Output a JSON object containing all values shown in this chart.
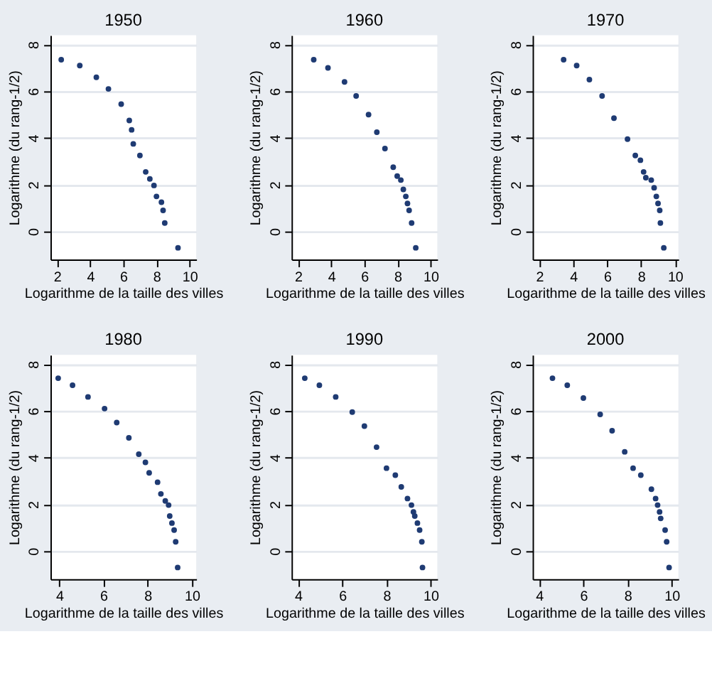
{
  "chart_data": [
    {
      "type": "scatter",
      "title": "1950",
      "xlabel": "Logarithme de la taille des villes",
      "ylabel": "Logarithme (du rang-1/2)",
      "color": "#1f3b73",
      "marker": "circle",
      "grid": "y",
      "xlim": [
        1.6,
        10.4
      ],
      "ylim": [
        -1.2,
        8.4
      ],
      "xticks": [
        2,
        4,
        6,
        8,
        10
      ],
      "yticks": [
        0,
        2,
        4,
        6,
        8
      ],
      "x": [
        2.25,
        3.37,
        4.37,
        5.1,
        5.87,
        6.36,
        6.5,
        6.6,
        7.0,
        7.35,
        7.6,
        7.85,
        8.0,
        8.3,
        8.4,
        8.5,
        9.3
      ],
      "values": [
        7.35,
        7.1,
        6.6,
        6.1,
        5.45,
        4.75,
        4.35,
        3.75,
        3.25,
        2.55,
        2.25,
        1.97,
        1.5,
        1.25,
        0.9,
        0.36,
        -0.7
      ]
    },
    {
      "type": "scatter",
      "title": "1960",
      "xlabel": "Logarithme de la taille des villes",
      "ylabel": "Logarithme (du rang-1/2)",
      "color": "#1f3b73",
      "marker": "circle",
      "grid": "y",
      "xlim": [
        1.6,
        10.4
      ],
      "ylim": [
        -1.2,
        8.4
      ],
      "xticks": [
        2,
        4,
        6,
        8,
        10
      ],
      "yticks": [
        0,
        2,
        4,
        6,
        8
      ],
      "x": [
        2.94,
        3.8,
        4.8,
        5.5,
        6.25,
        6.75,
        7.24,
        7.74,
        7.98,
        8.2,
        8.35,
        8.5,
        8.6,
        8.7,
        8.85,
        9.1
      ],
      "values": [
        7.35,
        7.0,
        6.4,
        5.8,
        5.0,
        4.25,
        3.55,
        2.75,
        2.37,
        2.2,
        1.8,
        1.5,
        1.2,
        0.9,
        0.36,
        -0.7
      ]
    },
    {
      "type": "scatter",
      "title": "1970",
      "xlabel": "Logarithme de la taille des villes",
      "ylabel": "Logarithme (du rang-1/2)",
      "color": "#1f3b73",
      "marker": "circle",
      "grid": "y",
      "xlim": [
        1.6,
        10.2
      ],
      "ylim": [
        -1.2,
        8.4
      ],
      "xticks": [
        2,
        4,
        6,
        8,
        10
      ],
      "yticks": [
        0,
        2,
        4,
        6,
        8
      ],
      "x": [
        3.43,
        4.2,
        4.95,
        5.7,
        6.4,
        7.2,
        7.66,
        7.96,
        8.15,
        8.28,
        8.6,
        8.77,
        8.9,
        9.0,
        9.1,
        9.14,
        9.34
      ],
      "values": [
        7.35,
        7.1,
        6.5,
        5.8,
        4.85,
        3.95,
        3.25,
        3.05,
        2.55,
        2.3,
        2.2,
        1.87,
        1.5,
        1.2,
        0.9,
        0.36,
        -0.7
      ]
    },
    {
      "type": "scatter",
      "title": "1980",
      "xlabel": "Logarithme de la taille des villes",
      "ylabel": "Logarithme (du rang-1/2)",
      "color": "#1f3b73",
      "marker": "circle",
      "grid": "y",
      "xlim": [
        3.6,
        10.2
      ],
      "ylim": [
        -1.2,
        8.4
      ],
      "xticks": [
        4,
        6,
        8,
        10
      ],
      "yticks": [
        0,
        2,
        4,
        6,
        8
      ],
      "x": [
        3.95,
        4.6,
        5.3,
        6.05,
        6.6,
        7.15,
        7.6,
        7.9,
        8.07,
        8.45,
        8.6,
        8.8,
        8.95,
        9.0,
        9.1,
        9.2,
        9.27,
        9.36
      ],
      "values": [
        7.4,
        7.1,
        6.6,
        6.1,
        5.5,
        4.85,
        4.15,
        3.8,
        3.35,
        2.95,
        2.45,
        2.15,
        1.97,
        1.5,
        1.2,
        0.9,
        0.4,
        -0.7
      ]
    },
    {
      "type": "scatter",
      "title": "1990",
      "xlabel": "Logarithme de la taille des villes",
      "ylabel": "Logarithme (du rang-1/2)",
      "color": "#1f3b73",
      "marker": "circle",
      "grid": "y",
      "xlim": [
        3.7,
        10.3
      ],
      "ylim": [
        -1.2,
        8.4
      ],
      "xticks": [
        4,
        6,
        8,
        10
      ],
      "yticks": [
        0,
        2,
        4,
        6,
        8
      ],
      "x": [
        4.3,
        4.96,
        5.7,
        6.45,
        7.0,
        7.55,
        8.0,
        8.4,
        8.67,
        8.95,
        9.13,
        9.22,
        9.28,
        9.4,
        9.5,
        9.6,
        9.63
      ],
      "values": [
        7.4,
        7.1,
        6.6,
        5.95,
        5.35,
        4.45,
        3.55,
        3.25,
        2.75,
        2.25,
        1.97,
        1.68,
        1.5,
        1.2,
        0.9,
        0.4,
        -0.7
      ]
    },
    {
      "type": "scatter",
      "title": "2000",
      "xlabel": "Logarithme de la taille des villes",
      "ylabel": "Logarithme (du rang-1/2)",
      "color": "#1f3b73",
      "marker": "circle",
      "grid": "y",
      "xlim": [
        3.7,
        10.3
      ],
      "ylim": [
        -1.2,
        8.4
      ],
      "xticks": [
        4,
        6,
        8,
        10
      ],
      "yticks": [
        0,
        2,
        4,
        6,
        8
      ],
      "x": [
        4.6,
        5.27,
        6.0,
        6.76,
        7.3,
        7.87,
        8.25,
        8.6,
        9.08,
        9.27,
        9.36,
        9.45,
        9.5,
        9.7,
        9.77,
        9.88
      ],
      "values": [
        7.4,
        7.1,
        6.55,
        5.85,
        5.15,
        4.25,
        3.55,
        3.25,
        2.65,
        2.25,
        1.97,
        1.68,
        1.4,
        0.9,
        0.4,
        -0.7
      ]
    }
  ]
}
